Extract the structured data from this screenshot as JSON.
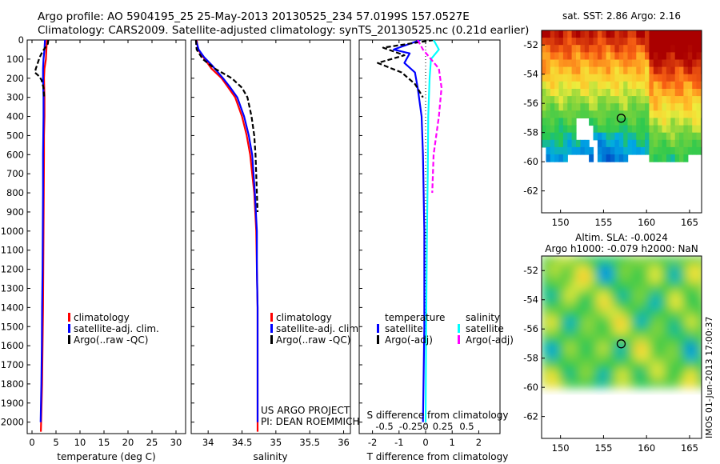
{
  "header": {
    "line1": "Argo profile: AO 5904195_25 25-May-2013 20130525_234 57.0199S 157.0527E",
    "line2": "Climatology: CARS2009. Satellite-adjusted climatology: synTS_20130525.nc (0.21d earlier)"
  },
  "colors": {
    "climatology": "#ff0000",
    "satellite": "#0000ff",
    "argo": "#000000",
    "salinity_satellite": "#00ffff",
    "salinity_argo": "#ff00ff"
  },
  "chart_data": [
    {
      "id": "temperature",
      "type": "line",
      "xlabel": "temperature (deg C)",
      "ylabel": "",
      "xlim": [
        -1,
        32
      ],
      "ylim": [
        2060,
        0
      ],
      "xticks": [
        0,
        5,
        10,
        15,
        20,
        25,
        30
      ],
      "yticks": [
        0,
        100,
        200,
        300,
        400,
        500,
        600,
        700,
        800,
        900,
        1000,
        1100,
        1200,
        1300,
        1400,
        1500,
        1600,
        1700,
        1800,
        1900,
        2000
      ],
      "legend": [
        "climatology",
        "satellite-adj. clim.",
        "Argo(..raw -QC)"
      ],
      "series": [
        {
          "name": "climatology",
          "color": "#ff0000",
          "style": "solid",
          "points": [
            [
              3.1,
              0
            ],
            [
              3.0,
              50
            ],
            [
              2.9,
              100
            ],
            [
              2.6,
              150
            ],
            [
              2.5,
              200
            ],
            [
              2.55,
              250
            ],
            [
              2.6,
              300
            ],
            [
              2.6,
              400
            ],
            [
              2.5,
              500
            ],
            [
              2.5,
              600
            ],
            [
              2.45,
              800
            ],
            [
              2.4,
              1000
            ],
            [
              2.35,
              1200
            ],
            [
              2.3,
              1400
            ],
            [
              2.2,
              1600
            ],
            [
              2.1,
              1800
            ],
            [
              1.9,
              2000
            ],
            [
              1.85,
              2050
            ]
          ]
        },
        {
          "name": "satellite-adj. clim.",
          "color": "#0000ff",
          "style": "solid",
          "points": [
            [
              2.7,
              0
            ],
            [
              2.6,
              50
            ],
            [
              2.4,
              100
            ],
            [
              2.3,
              150
            ],
            [
              2.3,
              200
            ],
            [
              2.35,
              250
            ],
            [
              2.4,
              300
            ],
            [
              2.4,
              400
            ],
            [
              2.35,
              500
            ],
            [
              2.3,
              600
            ],
            [
              2.3,
              800
            ],
            [
              2.25,
              1000
            ],
            [
              2.2,
              1200
            ],
            [
              2.1,
              1400
            ],
            [
              2.05,
              1600
            ],
            [
              1.95,
              1800
            ],
            [
              1.8,
              2000
            ]
          ]
        },
        {
          "name": "Argo(..raw -QC)",
          "color": "#000000",
          "style": "dashed",
          "points": [
            [
              3.4,
              0
            ],
            [
              3.3,
              20
            ],
            [
              2.2,
              60
            ],
            [
              1.6,
              90
            ],
            [
              1.2,
              120
            ],
            [
              0.8,
              150
            ],
            [
              0.6,
              170
            ],
            [
              1.5,
              190
            ],
            [
              2.0,
              210
            ],
            [
              2.4,
              250
            ],
            [
              2.55,
              300
            ]
          ]
        }
      ]
    },
    {
      "id": "salinity",
      "type": "line",
      "xlabel": "salinity",
      "ylabel": "",
      "xlim": [
        33.75,
        36.1
      ],
      "ylim": [
        2060,
        0
      ],
      "xticks": [
        34,
        34.5,
        35,
        35.5,
        36
      ],
      "xticklabels": [
        "34",
        "34.5",
        "35",
        "35.5",
        "36"
      ],
      "yticks": [],
      "legend": [
        "climatology",
        "satellite-adj. clim.",
        "Argo(..raw -QC)"
      ],
      "annotations": [
        "US ARGO PROJECT",
        "PI: DEAN ROEMMICH"
      ],
      "series": [
        {
          "name": "climatology",
          "color": "#ff0000",
          "style": "solid",
          "points": [
            [
              33.83,
              0
            ],
            [
              33.85,
              50
            ],
            [
              33.95,
              100
            ],
            [
              34.05,
              150
            ],
            [
              34.2,
              200
            ],
            [
              34.3,
              250
            ],
            [
              34.4,
              300
            ],
            [
              34.5,
              400
            ],
            [
              34.57,
              500
            ],
            [
              34.62,
              600
            ],
            [
              34.68,
              800
            ],
            [
              34.71,
              1000
            ],
            [
              34.72,
              1200
            ],
            [
              34.73,
              1400
            ],
            [
              34.73,
              1600
            ],
            [
              34.73,
              1800
            ],
            [
              34.73,
              2000
            ],
            [
              34.73,
              2050
            ]
          ]
        },
        {
          "name": "satellite-adj. clim.",
          "color": "#0000ff",
          "style": "solid",
          "points": [
            [
              33.82,
              0
            ],
            [
              33.86,
              50
            ],
            [
              33.94,
              90
            ],
            [
              34.05,
              130
            ],
            [
              34.22,
              200
            ],
            [
              34.33,
              250
            ],
            [
              34.43,
              300
            ],
            [
              34.53,
              400
            ],
            [
              34.6,
              500
            ],
            [
              34.65,
              600
            ],
            [
              34.69,
              800
            ],
            [
              34.72,
              1000
            ],
            [
              34.72,
              1200
            ],
            [
              34.73,
              1400
            ],
            [
              34.73,
              1600
            ],
            [
              34.73,
              1800
            ],
            [
              34.73,
              2000
            ]
          ]
        },
        {
          "name": "Argo(..raw -QC)",
          "color": "#000000",
          "style": "dashed",
          "points": [
            [
              33.82,
              0
            ],
            [
              33.83,
              50
            ],
            [
              33.92,
              100
            ],
            [
              34.1,
              150
            ],
            [
              34.35,
              200
            ],
            [
              34.5,
              250
            ],
            [
              34.58,
              300
            ],
            [
              34.64,
              400
            ],
            [
              34.68,
              500
            ],
            [
              34.7,
              600
            ],
            [
              34.72,
              800
            ],
            [
              34.73,
              900
            ]
          ]
        }
      ]
    },
    {
      "id": "difference",
      "type": "line",
      "xlabel": "T difference from climatology",
      "title_inside": "S difference from climatology",
      "xlim": [
        -2.5,
        2.8
      ],
      "ylim": [
        2060,
        0
      ],
      "xticks": [
        -2,
        -1,
        0,
        1,
        2
      ],
      "top_ticklabels": [
        "-0.5",
        "-0.25",
        "0",
        "0.25",
        "0.5"
      ],
      "legend_left_title": "temperature",
      "legend_right_title": "salinity",
      "legend_left": [
        "satellite",
        "Argo(-adj)"
      ],
      "legend_right": [
        "satellite",
        "Argo(-adj)"
      ],
      "series": [
        {
          "name": "T satellite",
          "color": "#0000ff",
          "style": "solid",
          "points": [
            [
              -0.2,
              0
            ],
            [
              -1.2,
              50
            ],
            [
              -0.6,
              70
            ],
            [
              -0.8,
              120
            ],
            [
              -0.4,
              170
            ],
            [
              -0.3,
              250
            ],
            [
              -0.15,
              400
            ],
            [
              -0.1,
              600
            ],
            [
              -0.05,
              1000
            ],
            [
              -0.05,
              1500
            ],
            [
              -0.1,
              2000
            ]
          ]
        },
        {
          "name": "T Argo(-adj)",
          "color": "#000000",
          "style": "dashed",
          "points": [
            [
              0.3,
              0
            ],
            [
              -1.6,
              40
            ],
            [
              -0.8,
              80
            ],
            [
              -1.8,
              120
            ],
            [
              -0.9,
              170
            ],
            [
              -0.4,
              230
            ],
            [
              -0.1,
              300
            ]
          ]
        },
        {
          "name": "S satellite",
          "color": "#00ffff",
          "style": "solid",
          "points": [
            [
              0.3,
              0
            ],
            [
              0.5,
              50
            ],
            [
              0.2,
              100
            ],
            [
              0.15,
              200
            ],
            [
              0.1,
              400
            ],
            [
              0.08,
              700
            ],
            [
              0.05,
              1000
            ],
            [
              0.02,
              1500
            ],
            [
              0,
              2000
            ]
          ]
        },
        {
          "name": "S Argo(-adj)",
          "color": "#ff00ff",
          "style": "dashed",
          "points": [
            [
              -0.3,
              0
            ],
            [
              -0.1,
              50
            ],
            [
              0.5,
              150
            ],
            [
              0.6,
              250
            ],
            [
              0.5,
              400
            ],
            [
              0.3,
              600
            ],
            [
              0.25,
              800
            ]
          ]
        }
      ]
    },
    {
      "id": "sst_map",
      "type": "heatmap",
      "title": "sat. SST: 2.86 Argo: 2.16",
      "xlim": [
        147.8,
        166.4
      ],
      "ylim": [
        -63.5,
        -51
      ],
      "xticks": [
        150,
        155,
        160,
        165
      ],
      "yticks": [
        -52,
        -54,
        -56,
        -58,
        -60,
        -62
      ],
      "marker": {
        "lon": 157.05,
        "lat": -57.02
      }
    },
    {
      "id": "sla_map",
      "type": "heatmap",
      "title_line1": "Altim. SLA: -0.0024",
      "title_line2": "Argo h1000: -0.079 h2000: NaN",
      "xlim": [
        147.8,
        166.4
      ],
      "ylim": [
        -63.5,
        -51
      ],
      "xticks": [
        150,
        155,
        160,
        165
      ],
      "yticks": [
        -52,
        -54,
        -56,
        -58,
        -60,
        -62
      ],
      "marker": {
        "lon": 157.05,
        "lat": -57.02
      }
    }
  ],
  "watermark": "IMOS 01-Jun-2013 17:00:37"
}
